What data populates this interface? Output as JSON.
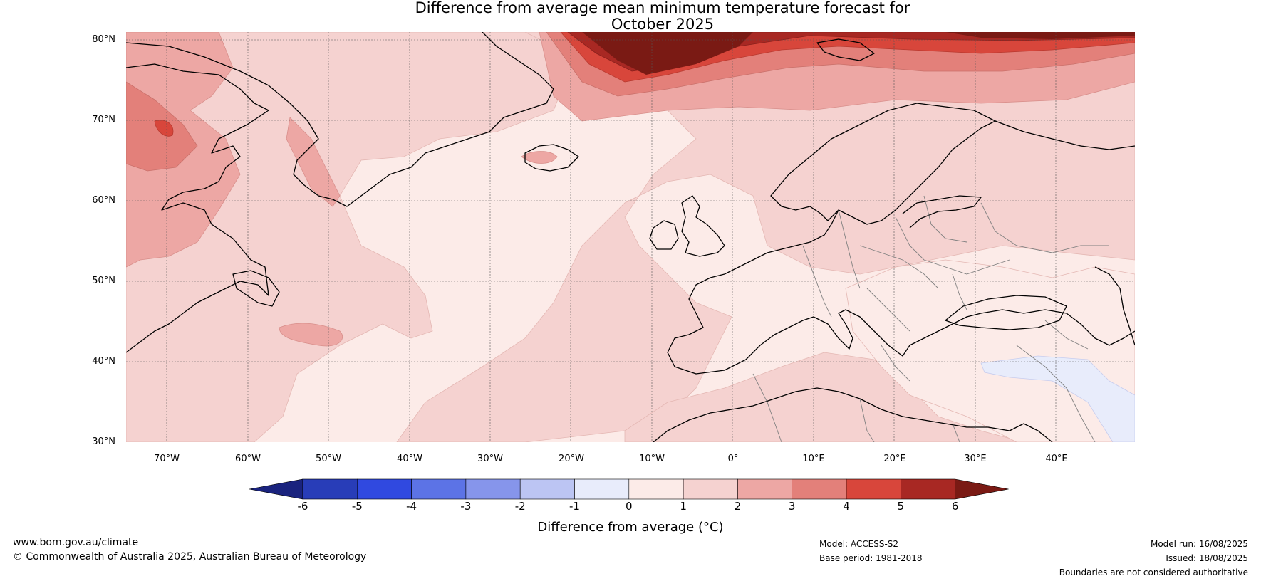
{
  "title_line1": "Difference from average mean minimum temperature forecast for",
  "title_line2": "October 2025",
  "lat_labels": [
    "80°N",
    "70°N",
    "60°N",
    "50°N",
    "40°N",
    "30°N"
  ],
  "lon_labels": [
    "70°W",
    "60°W",
    "50°W",
    "40°W",
    "30°W",
    "20°W",
    "10°W",
    "0°",
    "10°E",
    "20°E",
    "30°E",
    "40°E"
  ],
  "colorbar": {
    "ticks": [
      "-6",
      "-5",
      "-4",
      "-3",
      "-2",
      "-1",
      "0",
      "1",
      "2",
      "3",
      "4",
      "5",
      "6"
    ],
    "colors": [
      "#1a237e",
      "#283db8",
      "#3049e0",
      "#5c73e6",
      "#8695eb",
      "#bcc5f3",
      "#e8ecfb",
      "#fcebe8",
      "#f5d2d0",
      "#eda7a4",
      "#e3807a",
      "#d8463b",
      "#a82823",
      "#7a1a14"
    ],
    "label": "Difference from average (°C)"
  },
  "footer": {
    "url": "www.bom.gov.au/climate",
    "copyright": "© Commonwealth of Australia 2025, Australian Bureau of Meteorology",
    "model": "Model: ACCESS-S2",
    "base_period": "Base period: 1981-2018",
    "model_run": "Model run: 16/08/2025",
    "issued": "Issued: 18/08/2025",
    "disclaimer": "Boundaries are not considered authoritative"
  }
}
